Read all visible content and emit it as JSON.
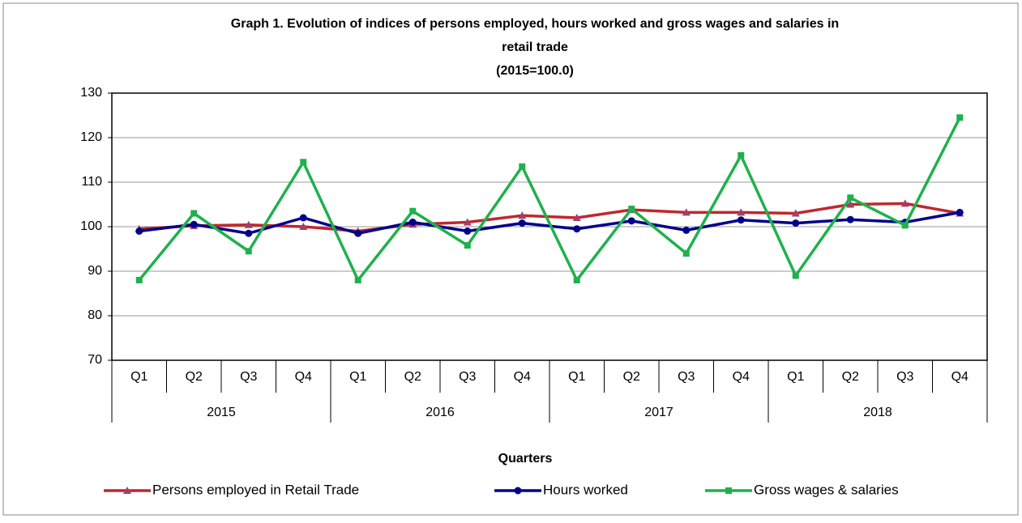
{
  "chart_data": {
    "type": "line",
    "title_lines": [
      "Graph 1. Evolution of indices of persons employed, hours worked and gross wages and salaries in",
      "retail trade",
      "(2015=100.0)"
    ],
    "x_label": "Quarters",
    "categories": [
      "Q1",
      "Q2",
      "Q3",
      "Q4",
      "Q1",
      "Q2",
      "Q3",
      "Q4",
      "Q1",
      "Q2",
      "Q3",
      "Q4",
      "Q1",
      "Q2",
      "Q3",
      "Q4"
    ],
    "category_groups": [
      "2015",
      "2016",
      "2017",
      "2018"
    ],
    "series": [
      {
        "name": "Persons employed in Retail Trade",
        "color": "#c0272d",
        "marker_color": "#a0406a",
        "marker": "triangle",
        "values": [
          99.5,
          100.2,
          100.4,
          100.0,
          99.0,
          100.5,
          101.0,
          102.5,
          102.0,
          103.8,
          103.2,
          103.2,
          103.0,
          105.0,
          105.2,
          103.0
        ]
      },
      {
        "name": "Hours worked",
        "color": "#00008b",
        "marker_color": "#00008b",
        "marker": "circle",
        "values": [
          99.0,
          100.5,
          98.5,
          102.0,
          98.5,
          101.0,
          99.0,
          100.8,
          99.5,
          101.3,
          99.2,
          101.5,
          100.8,
          101.6,
          101.0,
          103.2
        ]
      },
      {
        "name": "Gross wages & salaries",
        "color": "#1fb14c",
        "marker_color": "#1fb14c",
        "marker": "square",
        "values": [
          88.0,
          103.0,
          94.5,
          114.5,
          88.0,
          103.5,
          95.8,
          113.5,
          88.0,
          104.0,
          94.0,
          116.0,
          89.0,
          106.5,
          100.3,
          124.5
        ]
      }
    ],
    "ylim": [
      70,
      130
    ],
    "yticks": [
      70,
      80,
      90,
      100,
      110,
      120,
      130
    ],
    "grid": true
  }
}
